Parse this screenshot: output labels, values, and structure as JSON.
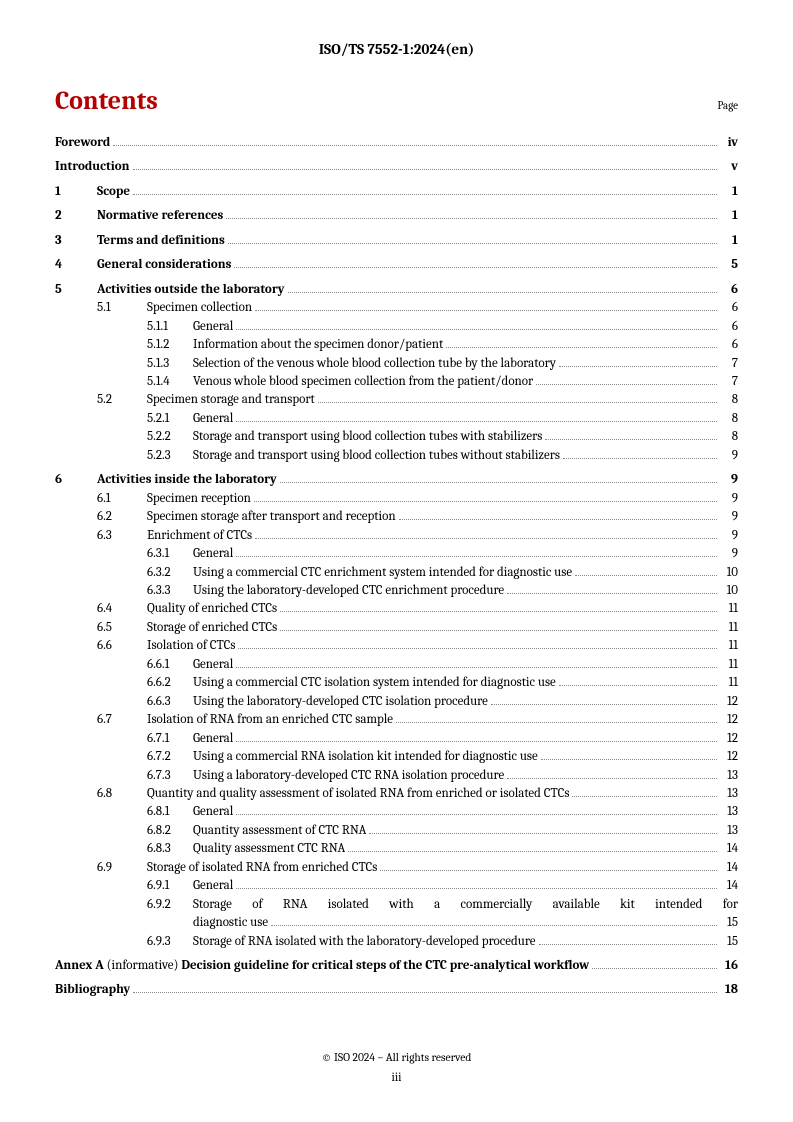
{
  "doc_id": "ISO/TS 7552-1:2024(en)",
  "title": "Contents",
  "page_label": "Page",
  "footer": {
    "copyright": "© ISO 2024 – All rights reserved",
    "page_number": "iii"
  },
  "toc": [
    {
      "level": 0,
      "num": "",
      "text": "Foreword",
      "page": "iv",
      "bold": true
    },
    {
      "level": 0,
      "num": "",
      "text": "Introduction",
      "page": "v",
      "bold": true,
      "gap": true
    },
    {
      "level": 1,
      "num": "1",
      "text": "Scope",
      "page": "1",
      "bold": true,
      "gap": true
    },
    {
      "level": 1,
      "num": "2",
      "text": "Normative references",
      "page": "1",
      "bold": true,
      "gap": true
    },
    {
      "level": 1,
      "num": "3",
      "text": "Terms and definitions",
      "page": "1",
      "bold": true,
      "gap": true
    },
    {
      "level": 1,
      "num": "4",
      "text": "General considerations",
      "page": "5",
      "bold": true,
      "gap": true
    },
    {
      "level": 1,
      "num": "5",
      "text": "Activities outside the laboratory",
      "page": "6",
      "bold": true,
      "gap": true
    },
    {
      "level": 2,
      "num": "5.1",
      "text": "Specimen collection",
      "page": "6"
    },
    {
      "level": 3,
      "num": "5.1.1",
      "text": "General",
      "page": "6"
    },
    {
      "level": 3,
      "num": "5.1.2",
      "text": "Information about the specimen donor/patient",
      "page": "6"
    },
    {
      "level": 3,
      "num": "5.1.3",
      "text": "Selection of the venous whole blood collection tube by the laboratory",
      "page": "7"
    },
    {
      "level": 3,
      "num": "5.1.4",
      "text": "Venous whole blood specimen collection from the patient/donor",
      "page": "7"
    },
    {
      "level": 2,
      "num": "5.2",
      "text": "Specimen storage and transport",
      "page": "8"
    },
    {
      "level": 3,
      "num": "5.2.1",
      "text": "General",
      "page": "8"
    },
    {
      "level": 3,
      "num": "5.2.2",
      "text": "Storage and transport using blood collection tubes with stabilizers",
      "page": "8"
    },
    {
      "level": 3,
      "num": "5.2.3",
      "text": "Storage and transport using blood collection tubes without stabilizers",
      "page": "9"
    },
    {
      "level": 1,
      "num": "6",
      "text": "Activities inside the laboratory",
      "page": "9",
      "bold": true,
      "gap": true
    },
    {
      "level": 2,
      "num": "6.1",
      "text": "Specimen reception",
      "page": "9"
    },
    {
      "level": 2,
      "num": "6.2",
      "text": "Specimen storage after transport and reception",
      "page": "9"
    },
    {
      "level": 2,
      "num": "6.3",
      "text": "Enrichment of CTCs",
      "page": "9"
    },
    {
      "level": 3,
      "num": "6.3.1",
      "text": "General",
      "page": "9"
    },
    {
      "level": 3,
      "num": "6.3.2",
      "text": "Using a commercial CTC enrichment system intended for diagnostic use",
      "page": "10"
    },
    {
      "level": 3,
      "num": "6.3.3",
      "text": "Using the laboratory-developed CTC enrichment procedure",
      "page": "10"
    },
    {
      "level": 2,
      "num": "6.4",
      "text": "Quality of enriched CTCs",
      "page": "11"
    },
    {
      "level": 2,
      "num": "6.5",
      "text": "Storage of enriched CTCs",
      "page": "11"
    },
    {
      "level": 2,
      "num": "6.6",
      "text": "Isolation of CTCs",
      "page": "11"
    },
    {
      "level": 3,
      "num": "6.6.1",
      "text": "General",
      "page": "11"
    },
    {
      "level": 3,
      "num": "6.6.2",
      "text": "Using a commercial CTC isolation system intended for diagnostic use",
      "page": "11"
    },
    {
      "level": 3,
      "num": "6.6.3",
      "text": "Using the laboratory-developed CTC isolation procedure",
      "page": "12"
    },
    {
      "level": 2,
      "num": "6.7",
      "text": "Isolation of RNA from an enriched CTC sample",
      "page": "12"
    },
    {
      "level": 3,
      "num": "6.7.1",
      "text": "General",
      "page": "12"
    },
    {
      "level": 3,
      "num": "6.7.2",
      "text": "Using a commercial RNA isolation kit intended for diagnostic use",
      "page": "12"
    },
    {
      "level": 3,
      "num": "6.7.3",
      "text": "Using a laboratory-developed CTC RNA isolation procedure",
      "page": "13"
    },
    {
      "level": 2,
      "num": "6.8",
      "text": "Quantity and quality assessment of isolated RNA from enriched or isolated CTCs",
      "page": "13"
    },
    {
      "level": 3,
      "num": "6.8.1",
      "text": "General",
      "page": "13"
    },
    {
      "level": 3,
      "num": "6.8.2",
      "text": "Quantity assessment of CTC RNA",
      "page": "13"
    },
    {
      "level": 3,
      "num": "6.8.3",
      "text": "Quality assessment CTC RNA",
      "page": "14"
    },
    {
      "level": 2,
      "num": "6.9",
      "text": "Storage of isolated RNA from enriched CTCs",
      "page": "14"
    },
    {
      "level": 3,
      "num": "6.9.1",
      "text": "General",
      "page": "14"
    },
    {
      "level": 3,
      "num": "6.9.2",
      "wrap": true,
      "text": "Storage of RNA isolated with a commercially available kit intended for diagnostic use",
      "page": "15"
    },
    {
      "level": 3,
      "num": "6.9.3",
      "text": "Storage of RNA isolated with the laboratory-developed procedure",
      "page": "15"
    },
    {
      "level": 0,
      "num": "",
      "annex": true,
      "prefix": "Annex A",
      "note": "(informative)",
      "text": "Decision guideline for critical steps of the CTC pre-analytical workflow",
      "page": "16",
      "bold": true,
      "gap": true
    },
    {
      "level": 0,
      "num": "",
      "text": "Bibliography",
      "page": "18",
      "bold": true,
      "gap": true
    }
  ]
}
